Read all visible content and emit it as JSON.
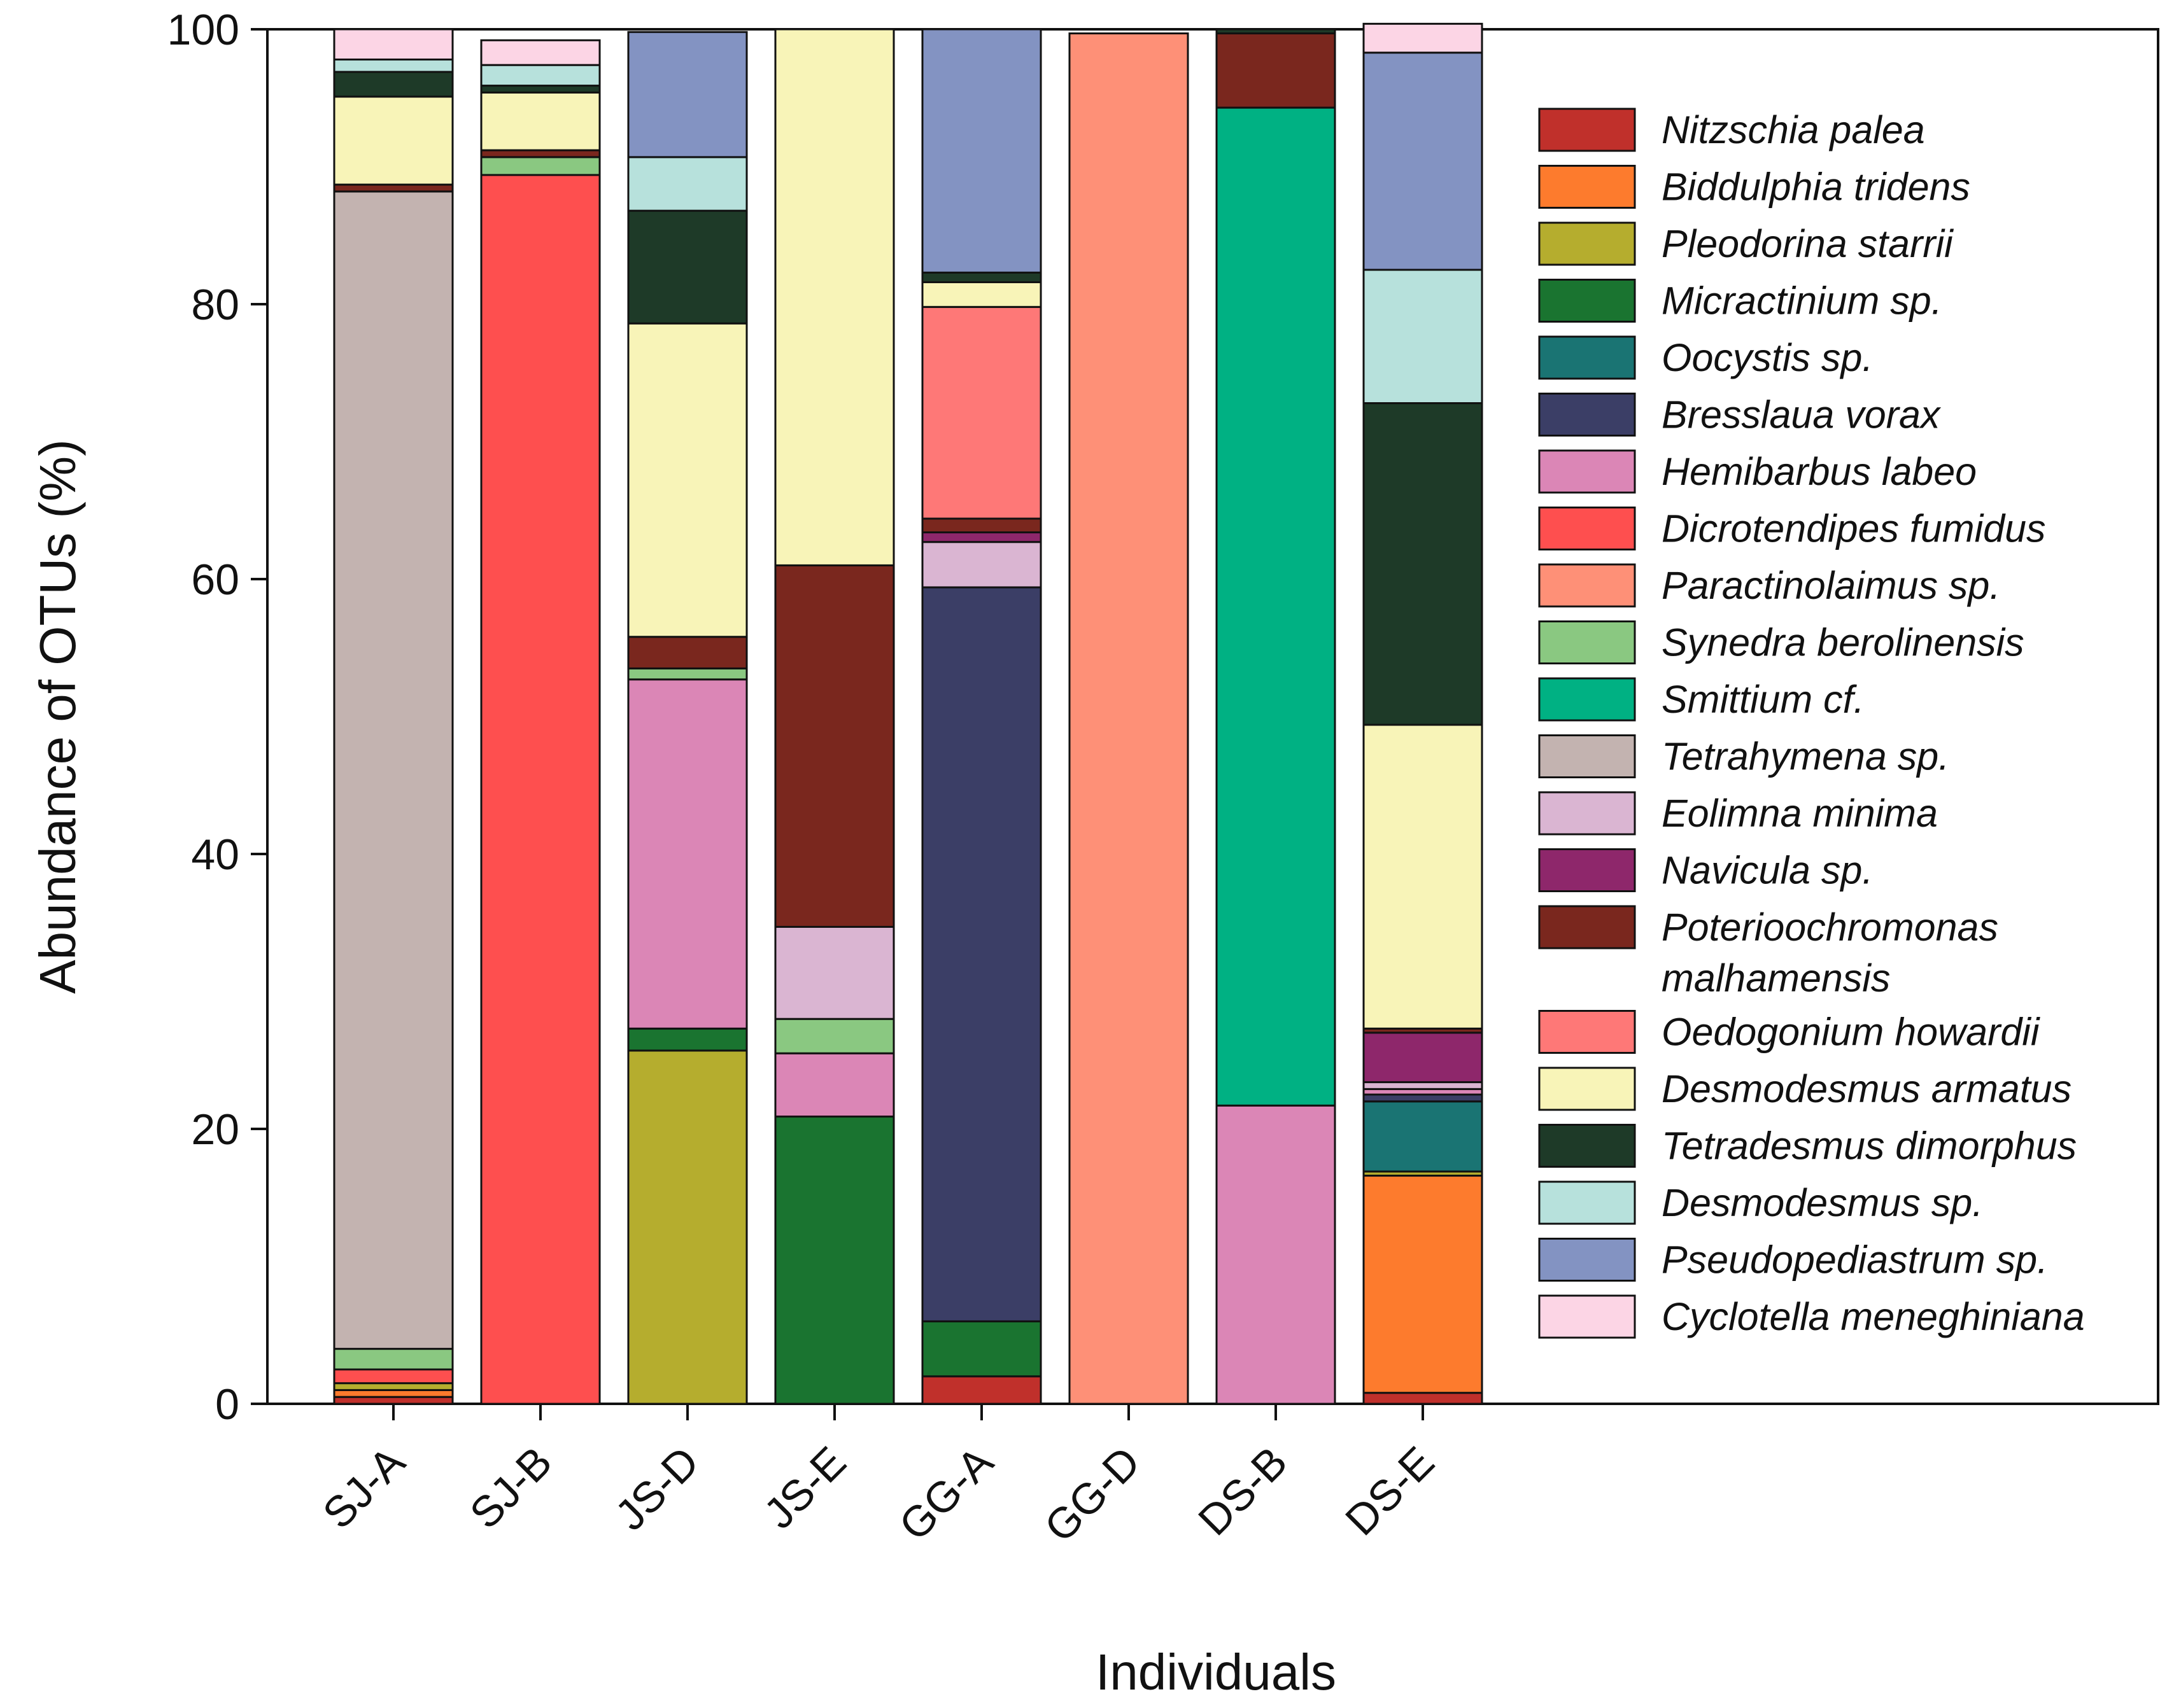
{
  "chart_data": {
    "type": "bar",
    "stacked": true,
    "xlabel": "Individuals",
    "ylabel": "Abundance of OTUs (%)",
    "ylim": [
      0,
      100
    ],
    "yticks": [
      0,
      20,
      40,
      60,
      80,
      100
    ],
    "grid": false,
    "legend_position": "right-inside",
    "categories": [
      "SJ-A",
      "SJ-B",
      "JS-D",
      "JS-E",
      "GG-A",
      "GG-D",
      "DS-B",
      "DS-E"
    ],
    "series": [
      {
        "name": "Nitzschia palea",
        "color": "#c0302b",
        "values": [
          0.5,
          0,
          0,
          0,
          2.0,
          0,
          0,
          0.8
        ]
      },
      {
        "name": "Biddulphia tridens",
        "color": "#fd7b2d",
        "values": [
          0.5,
          0,
          0,
          0,
          0,
          0,
          0,
          15.8
        ]
      },
      {
        "name": "Pleodorina starrii",
        "color": "#b5ad2e",
        "values": [
          0.5,
          0,
          25.7,
          0,
          0,
          0,
          0,
          0.3
        ]
      },
      {
        "name": "Micractinium sp.",
        "color": "#1a7430",
        "values": [
          0,
          0,
          1.6,
          20.9,
          4.0,
          0,
          0,
          0
        ]
      },
      {
        "name": "Oocystis sp.",
        "color": "#1a7473",
        "values": [
          0,
          0,
          0,
          0,
          0,
          0,
          0,
          5.1
        ]
      },
      {
        "name": "Bresslaua vorax",
        "color": "#3b3e66",
        "values": [
          0,
          0,
          0,
          0,
          53.4,
          0,
          0,
          0.5
        ]
      },
      {
        "name": "Hemibarbus labeo",
        "color": "#db86b6",
        "values": [
          0,
          0,
          25.4,
          4.6,
          0,
          0,
          21.7,
          0.4
        ]
      },
      {
        "name": "Dicrotendipes fumidus",
        "color": "#fe4f4f",
        "values": [
          1.0,
          89.4,
          0,
          0,
          0,
          0,
          0,
          0
        ]
      },
      {
        "name": "Paractinolaimus sp.",
        "color": "#fe9077",
        "values": [
          0,
          0,
          0,
          0,
          0,
          99.7,
          0,
          0
        ]
      },
      {
        "name": "Synedra berolinensis",
        "color": "#8ac881",
        "values": [
          1.5,
          1.3,
          0.8,
          2.5,
          0,
          0,
          0,
          0
        ]
      },
      {
        "name": "Smittium cf.",
        "color": "#00b183",
        "values": [
          0,
          0,
          0,
          0,
          0,
          0,
          72.6,
          0
        ]
      },
      {
        "name": "Tetrahymena sp.",
        "color": "#c3b3b0",
        "values": [
          84.2,
          0,
          0,
          0,
          0,
          0,
          0,
          0
        ]
      },
      {
        "name": "Eolimna minima",
        "color": "#dab5d2",
        "values": [
          0,
          0,
          0,
          6.7,
          3.3,
          0,
          0,
          0.5
        ]
      },
      {
        "name": "Navicula sp.",
        "color": "#8e276b",
        "values": [
          0,
          0,
          0,
          0,
          0.7,
          0,
          0,
          3.6
        ]
      },
      {
        "name": "Poterioochromonas malhamensis",
        "color": "#7a271e",
        "values": [
          0.5,
          0.5,
          2.3,
          26.3,
          1.0,
          0,
          5.4,
          0.3
        ]
      },
      {
        "name": "Oedogonium howardii",
        "color": "#fe7877",
        "values": [
          0,
          0,
          0,
          0,
          15.4,
          0,
          0,
          0
        ]
      },
      {
        "name": "Desmodesmus armatus",
        "color": "#f8f4b8",
        "values": [
          6.4,
          4.2,
          22.8,
          39.0,
          1.8,
          0,
          0,
          22.1
        ]
      },
      {
        "name": "Tetradesmus dimorphus",
        "color": "#1e3a28",
        "values": [
          1.8,
          0.5,
          8.2,
          0,
          0.7,
          0,
          0.3,
          23.4
        ]
      },
      {
        "name": "Desmodesmus sp.",
        "color": "#b7e1dc",
        "values": [
          0.9,
          1.5,
          3.9,
          0,
          0,
          0,
          0,
          9.7
        ]
      },
      {
        "name": "Pseudopediastrum sp.",
        "color": "#8393c2",
        "values": [
          0,
          0,
          9.1,
          0,
          17.7,
          0,
          0,
          15.8
        ]
      },
      {
        "name": "Cyclotella meneghiniana",
        "color": "#fcd5e5",
        "values": [
          2.2,
          1.8,
          0,
          0,
          0,
          0,
          0,
          2.1
        ]
      }
    ]
  }
}
